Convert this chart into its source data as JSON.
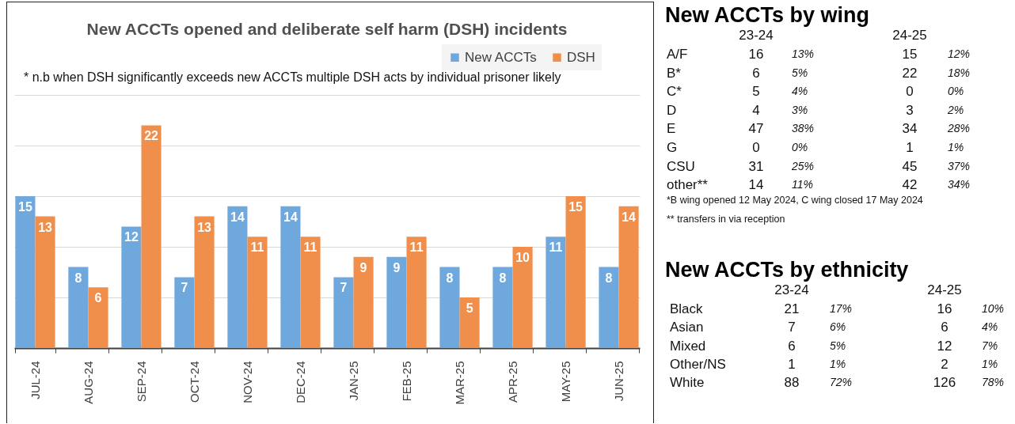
{
  "chart_data": [
    {
      "type": "bar",
      "title": "New ACCTs opened and deliberate self harm (DSH) incidents",
      "annotations": [
        "* n.b when DSH significantly exceeds new ACCTs multiple DSH acts by individual prisoner likely"
      ],
      "categories": [
        "JUL-24",
        "AUG-24",
        "SEP-24",
        "OCT-24",
        "NOV-24",
        "DEC-24",
        "JAN-25",
        "FEB-25",
        "MAR-25",
        "APR-25",
        "MAY-25",
        "JUN-25"
      ],
      "series": [
        {
          "name": "New ACCTs",
          "color": "#6fa8dc",
          "values": [
            15,
            8,
            12,
            7,
            14,
            14,
            7,
            9,
            8,
            8,
            11,
            8
          ]
        },
        {
          "name": "DSH",
          "color": "#f08e4c",
          "values": [
            13,
            6,
            22,
            13,
            11,
            11,
            9,
            11,
            5,
            10,
            15,
            14
          ]
        }
      ],
      "ylim": [
        0,
        25
      ],
      "yticks": [
        {
          "value": 0,
          "label": null
        },
        {
          "value": 5,
          "label": null
        },
        {
          "value": 10,
          "label": null
        },
        {
          "value": 15,
          "label": null
        },
        {
          "value": 20,
          "label": null
        },
        {
          "value": 25,
          "label": null
        }
      ],
      "tick_labels": "x",
      "grid": "y",
      "legend": "top right",
      "data_labels": true
    },
    {
      "type": "other",
      "title": "New ACCTs by wing",
      "categories": [
        "A/F",
        "B*",
        "C*",
        "D",
        "E",
        "G",
        "CSU",
        "other**"
      ],
      "series": [
        {
          "name": "23-24",
          "values": [
            16,
            6,
            5,
            4,
            47,
            0,
            31,
            14
          ]
        },
        {
          "values": [
            13,
            5,
            4,
            3,
            38,
            0,
            25,
            11
          ],
          "value_labels": [
            "13%",
            "5%",
            "4%",
            "3%",
            "38%",
            "0%",
            "25%",
            "11%"
          ]
        },
        {
          "name": "24-25",
          "values": [
            15,
            22,
            0,
            3,
            34,
            1,
            45,
            42
          ]
        },
        {
          "values": [
            12,
            18,
            0,
            2,
            28,
            1,
            37,
            34
          ],
          "value_labels": [
            "12%",
            "18%",
            "0%",
            "2%",
            "28%",
            "1%",
            "37%",
            "34%"
          ]
        }
      ],
      "data_labels": true,
      "annotations": [
        "*B wing opened 12 May 2024, C wing closed 17 May 2024",
        "** transfers in via reception"
      ]
    },
    {
      "type": "other",
      "title": "New ACCTs by ethnicity",
      "categories": [
        "Black",
        "Asian",
        "Mixed",
        "Other/NS",
        "White"
      ],
      "series": [
        {
          "name": "23-24",
          "values": [
            21,
            7,
            6,
            1,
            88
          ]
        },
        {
          "values": [
            17,
            6,
            5,
            1,
            72
          ],
          "value_labels": [
            "17%",
            "6%",
            "5%",
            "1%",
            "72%"
          ]
        },
        {
          "name": "24-25",
          "values": [
            16,
            6,
            12,
            2,
            126
          ]
        },
        {
          "values": [
            10,
            4,
            7,
            1,
            78
          ],
          "value_labels": [
            "10%",
            "4%",
            "7%",
            "1%",
            "78%"
          ]
        }
      ],
      "data_labels": true
    }
  ]
}
